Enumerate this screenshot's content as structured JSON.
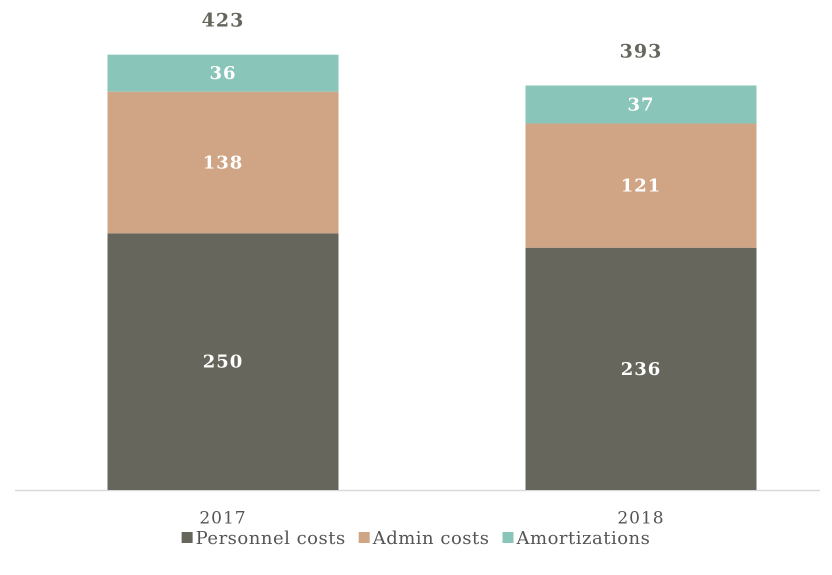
{
  "chart_data": {
    "type": "stacked_bar",
    "categories": [
      "2017",
      "2018"
    ],
    "series": [
      {
        "name": "Personnel costs",
        "color": "#66665c",
        "values": [
          250,
          236
        ]
      },
      {
        "name": "Admin costs",
        "color": "#d0a585",
        "values": [
          138,
          121
        ]
      },
      {
        "name": "Amortizations",
        "color": "#89c5b9",
        "values": [
          36,
          37
        ]
      }
    ],
    "totals": [
      423,
      393
    ],
    "ylim": [
      0,
      450
    ],
    "legend": "bottom"
  }
}
